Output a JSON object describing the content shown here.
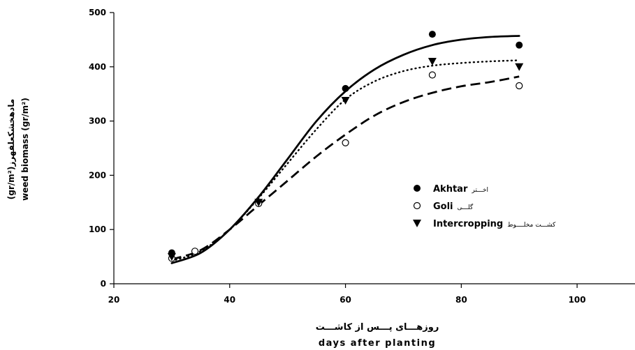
{
  "chart_data": {
    "type": "scatter",
    "xlabel_fa": "روزهـــای پـــس از کاشـــت",
    "xlabel": "days after planting",
    "ylabel_fa": "مادهخشکعلفهرز(gr/m²)",
    "ylabel": "weed biomass (gr/m²)",
    "xlim": [
      20,
      110
    ],
    "ylim": [
      0,
      500
    ],
    "xticks": [
      "20",
      "40",
      "60",
      "80",
      "100"
    ],
    "yticks": [
      "0",
      "100",
      "200",
      "300",
      "400",
      "500"
    ],
    "legend_position": "center-right",
    "series": [
      {
        "name": "Akhtar",
        "name_fa": "اخـــتر",
        "marker": "filled-circle",
        "line_style": "solid",
        "points": [
          [
            30,
            57
          ],
          [
            45,
            150
          ],
          [
            60,
            360
          ],
          [
            75,
            460
          ],
          [
            90,
            440
          ]
        ],
        "fit": [
          [
            30,
            38
          ],
          [
            35,
            57
          ],
          [
            40,
            100
          ],
          [
            45,
            160
          ],
          [
            50,
            230
          ],
          [
            55,
            300
          ],
          [
            60,
            355
          ],
          [
            65,
            395
          ],
          [
            70,
            422
          ],
          [
            75,
            440
          ],
          [
            80,
            450
          ],
          [
            85,
            455
          ],
          [
            90,
            457
          ]
        ]
      },
      {
        "name": "Goli",
        "name_fa": "گلـــی",
        "marker": "open-circle",
        "line_style": "dashed",
        "points": [
          [
            30,
            47
          ],
          [
            34,
            60
          ],
          [
            45,
            148
          ],
          [
            60,
            260
          ],
          [
            75,
            385
          ],
          [
            90,
            365
          ]
        ],
        "fit": [
          [
            30,
            45
          ],
          [
            35,
            62
          ],
          [
            40,
            100
          ],
          [
            45,
            145
          ],
          [
            50,
            190
          ],
          [
            55,
            235
          ],
          [
            60,
            275
          ],
          [
            65,
            310
          ],
          [
            70,
            335
          ],
          [
            75,
            352
          ],
          [
            80,
            364
          ],
          [
            85,
            372
          ],
          [
            90,
            382
          ]
        ]
      },
      {
        "name": "Intercropping",
        "name_fa": "کشـــت مخلــــوط",
        "marker": "filled-triangle-down",
        "line_style": "dotted",
        "points": [
          [
            30,
            50
          ],
          [
            45,
            150
          ],
          [
            60,
            338
          ],
          [
            75,
            410
          ],
          [
            90,
            400
          ]
        ],
        "fit": [
          [
            30,
            42
          ],
          [
            35,
            60
          ],
          [
            40,
            100
          ],
          [
            45,
            158
          ],
          [
            50,
            222
          ],
          [
            55,
            285
          ],
          [
            60,
            340
          ],
          [
            65,
            373
          ],
          [
            70,
            392
          ],
          [
            75,
            402
          ],
          [
            80,
            407
          ],
          [
            85,
            410
          ],
          [
            90,
            412
          ]
        ]
      }
    ]
  }
}
